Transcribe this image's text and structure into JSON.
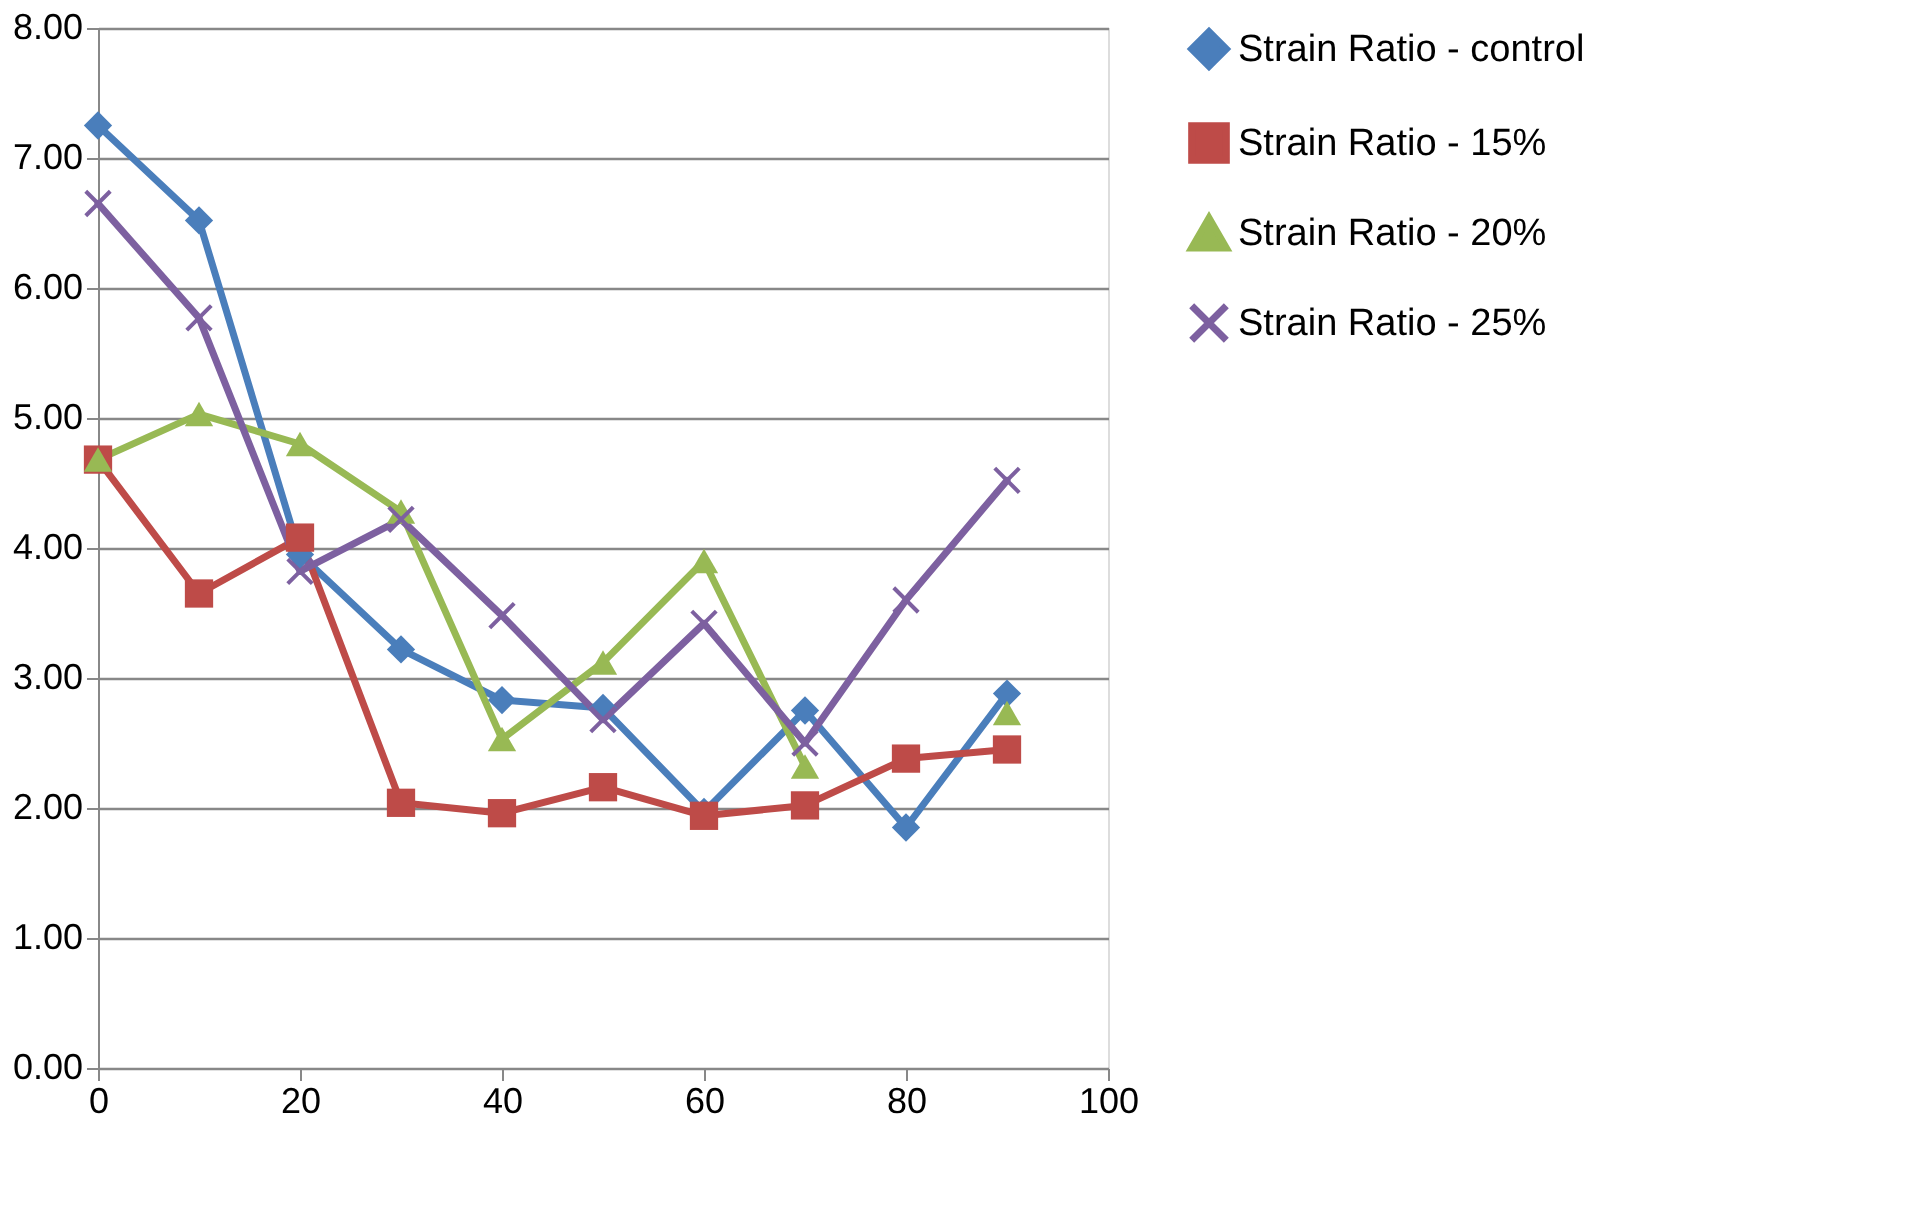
{
  "chart_data": {
    "type": "line",
    "x": [
      0,
      10,
      20,
      30,
      40,
      50,
      60,
      70,
      80,
      90
    ],
    "xlim": [
      0,
      100
    ],
    "xticks": [
      0,
      20,
      40,
      60,
      80,
      100
    ],
    "ylim": [
      0,
      8
    ],
    "yticks": [
      {
        "value": 0,
        "label": "0.00"
      },
      {
        "value": 1,
        "label": "1.00"
      },
      {
        "value": 2,
        "label": "2.00"
      },
      {
        "value": 3,
        "label": "3.00"
      },
      {
        "value": 4,
        "label": "4.00"
      },
      {
        "value": 5,
        "label": "5.00"
      },
      {
        "value": 6,
        "label": "6.00"
      },
      {
        "value": 7,
        "label": "7.00"
      },
      {
        "value": 8,
        "label": "8.00"
      }
    ],
    "grid": "y",
    "legend": "right",
    "line_style": "solid",
    "series": [
      {
        "name": "Strain Ratio - control",
        "color": "#4a7ebb",
        "marker": "diamond",
        "values": [
          7.25,
          6.52,
          3.95,
          3.22,
          2.83,
          2.77,
          1.97,
          2.75,
          1.85,
          2.88
        ]
      },
      {
        "name": "Strain Ratio - 15%",
        "color": "#be4b48",
        "marker": "square",
        "values": [
          4.68,
          3.65,
          4.08,
          2.04,
          1.96,
          2.16,
          1.94,
          2.02,
          2.38,
          2.45
        ]
      },
      {
        "name": "Strain Ratio - 20%",
        "color": "#98b954",
        "marker": "triangle",
        "values": [
          4.68,
          5.03,
          4.8,
          4.28,
          2.53,
          3.12,
          3.9,
          2.32,
          null,
          2.73
        ]
      },
      {
        "name": "Strain Ratio - 25%",
        "color": "#7d60a0",
        "marker": "cross",
        "values": [
          6.65,
          5.77,
          3.82,
          4.22,
          3.48,
          2.68,
          3.42,
          2.5,
          3.6,
          4.52
        ]
      }
    ]
  }
}
